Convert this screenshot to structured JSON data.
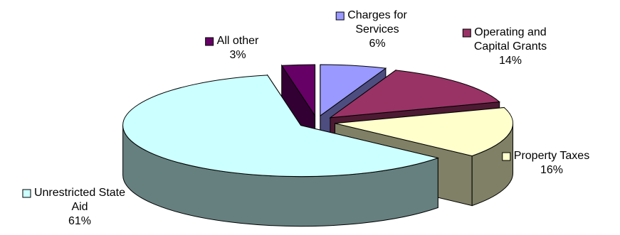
{
  "chart_data": {
    "type": "pie",
    "style": "3d-exploded",
    "title": "",
    "slices": [
      {
        "label_lines": [
          "Charges for",
          "Services"
        ],
        "label": "Charges for Services",
        "value": 6,
        "value_text": "6%",
        "color": "#9999FF",
        "side_color": "#4D4D80"
      },
      {
        "label_lines": [
          "Operating and",
          "Capital Grants"
        ],
        "label": "Operating and Capital Grants",
        "value": 14,
        "value_text": "14%",
        "color": "#993366",
        "side_color": "#4D1A33"
      },
      {
        "label_lines": [
          "Property Taxes"
        ],
        "label": "Property Taxes",
        "value": 16,
        "value_text": "16%",
        "color": "#FFFFCC",
        "side_color": "#808066"
      },
      {
        "label_lines": [
          "Unrestricted State",
          "Aid"
        ],
        "label": "Unrestricted State Aid",
        "value": 61,
        "value_text": "61%",
        "color": "#CCFFFF",
        "side_color": "#668080"
      },
      {
        "label_lines": [
          "All other"
        ],
        "label": "All other",
        "value": 3,
        "value_text": "3%",
        "color": "#660066",
        "side_color": "#330033"
      }
    ]
  }
}
